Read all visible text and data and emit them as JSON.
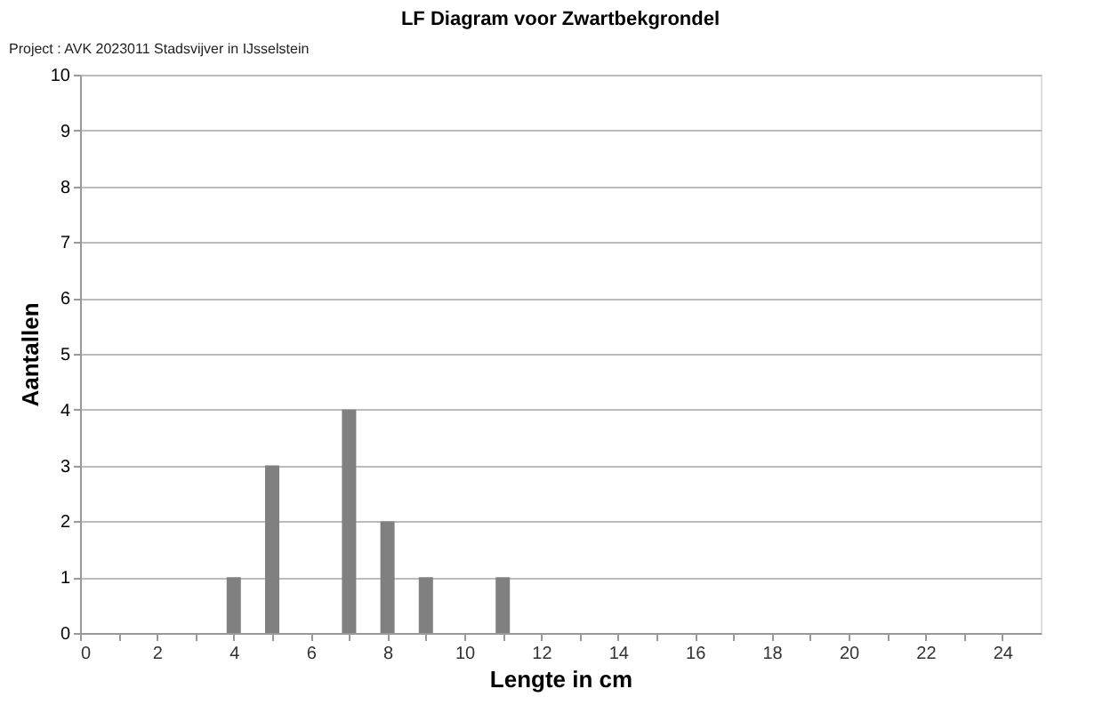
{
  "chart_data": {
    "type": "bar",
    "title": "LF Diagram voor Zwartbekgrondel",
    "annotations": [
      "Project   : AVK 2023011 Stadsvijver in IJsselstein"
    ],
    "xlabel": "Lengte in cm",
    "ylabel": "Aantallen",
    "x": [
      4,
      5,
      7,
      8,
      9,
      11
    ],
    "values": [
      1,
      3,
      4,
      2,
      1,
      1
    ],
    "color": "#808080",
    "xlim": [
      0,
      25
    ],
    "xticks": [
      0,
      {
        "value": 1,
        "label": null
      },
      2,
      {
        "value": 3,
        "label": null
      },
      4,
      {
        "value": 5,
        "label": null
      },
      6,
      {
        "value": 7,
        "label": null
      },
      8,
      {
        "value": 9,
        "label": null
      },
      10,
      {
        "value": 11,
        "label": null
      },
      12,
      {
        "value": 13,
        "label": null
      },
      14,
      {
        "value": 15,
        "label": null
      },
      16,
      {
        "value": 17,
        "label": null
      },
      18,
      {
        "value": 19,
        "label": null
      },
      20,
      {
        "value": 21,
        "label": null
      },
      22,
      {
        "value": 23,
        "label": null
      },
      24
    ],
    "ylim": [
      0,
      10
    ],
    "yticks": [
      0,
      1,
      2,
      3,
      4,
      5,
      6,
      7,
      8,
      9,
      10
    ],
    "grid": "y"
  }
}
